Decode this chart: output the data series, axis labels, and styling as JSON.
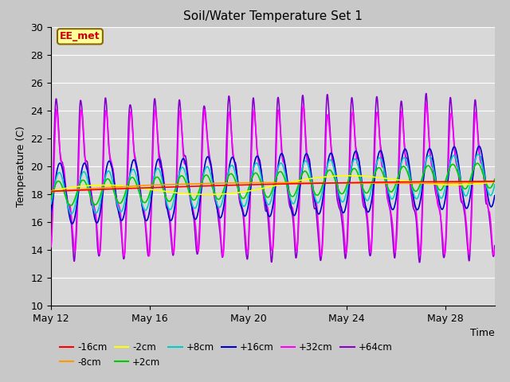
{
  "title": "Soil/Water Temperature Set 1",
  "xlabel": "Time",
  "ylabel": "Temperature (C)",
  "ylim": [
    10,
    30
  ],
  "xlim": [
    0,
    18
  ],
  "x_tick_labels": [
    "May 12",
    "May 16",
    "May 20",
    "May 24",
    "May 28"
  ],
  "x_tick_positions": [
    0,
    4,
    8,
    12,
    16
  ],
  "yticks": [
    10,
    12,
    14,
    16,
    18,
    20,
    22,
    24,
    26,
    28,
    30
  ],
  "fig_bg": "#cccccc",
  "axes_bg": "#d4d4d4",
  "grid_color": "#bbbbbb",
  "series": {
    "-16cm": {
      "color": "#ff0000",
      "lw": 1.2,
      "zorder": 9
    },
    "-8cm": {
      "color": "#ff9900",
      "lw": 1.2,
      "zorder": 8
    },
    "-2cm": {
      "color": "#ffff00",
      "lw": 1.2,
      "zorder": 7
    },
    "+2cm": {
      "color": "#00cc00",
      "lw": 1.2,
      "zorder": 6
    },
    "+8cm": {
      "color": "#00cccc",
      "lw": 1.2,
      "zorder": 5
    },
    "+16cm": {
      "color": "#0000cc",
      "lw": 1.2,
      "zorder": 4
    },
    "+32cm": {
      "color": "#ff00ff",
      "lw": 1.2,
      "zorder": 3
    },
    "+64cm": {
      "color": "#8800cc",
      "lw": 1.2,
      "zorder": 2
    }
  },
  "annotation_text": "EE_met",
  "annotation_color": "#cc0000",
  "annotation_bg": "#ffff99",
  "annotation_border": "#886600",
  "legend_labels": [
    "-16cm",
    "-8cm",
    "-2cm",
    "+2cm",
    "+8cm",
    "+16cm",
    "+32cm",
    "+64cm"
  ]
}
